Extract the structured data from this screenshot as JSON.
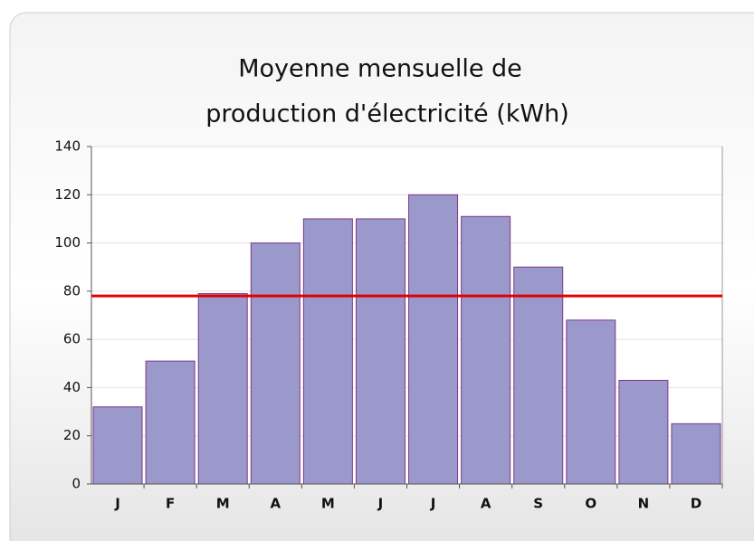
{
  "chart_data": {
    "type": "bar",
    "title": [
      "Moyenne mensuelle de",
      "production d'électricité (kWh)"
    ],
    "categories": [
      "J",
      "F",
      "M",
      "A",
      "M",
      "J",
      "J",
      "A",
      "S",
      "O",
      "N",
      "D"
    ],
    "values": [
      32,
      51,
      79,
      100,
      110,
      110,
      120,
      111,
      90,
      68,
      43,
      25
    ],
    "color": "#9b98cc",
    "edge_color": "#7b3a8a",
    "reference_line": 78,
    "reference_color": "#e00000",
    "ylim": [
      0,
      140
    ],
    "yticks": [
      0,
      20,
      40,
      60,
      80,
      100,
      120,
      140
    ],
    "grid": true
  }
}
